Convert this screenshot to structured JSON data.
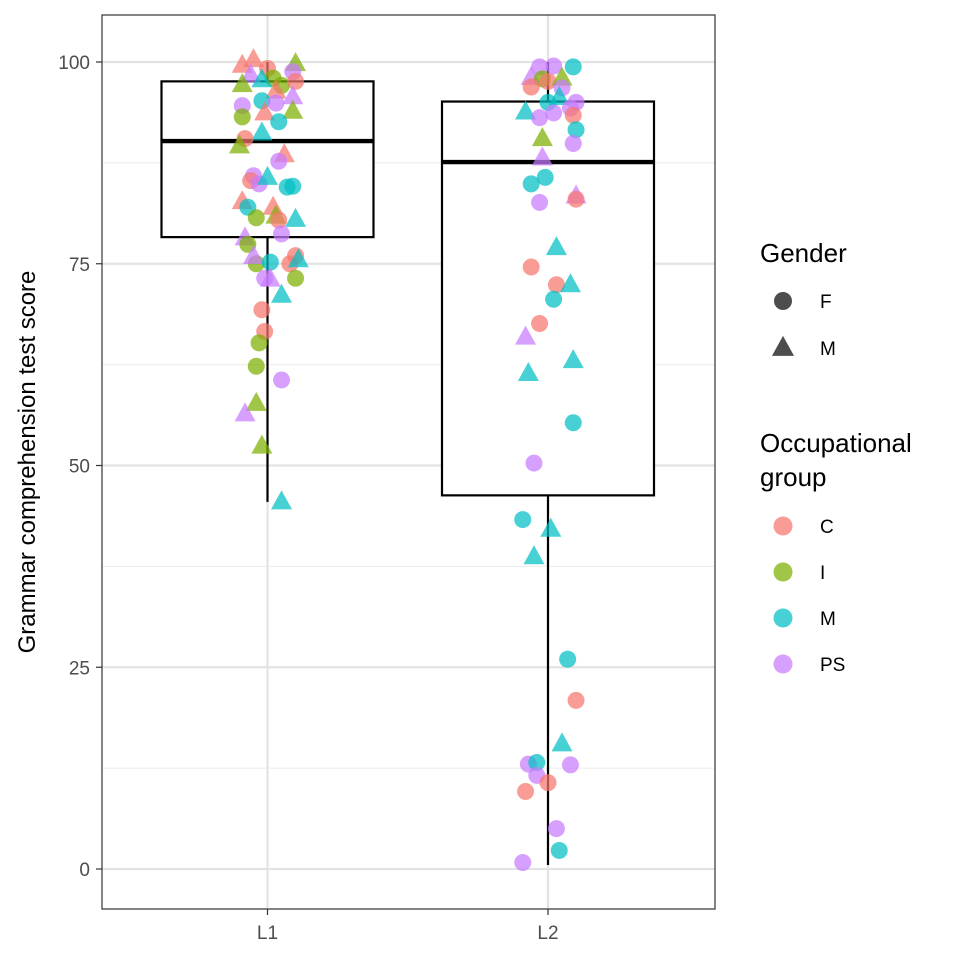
{
  "chart_data": {
    "type": "boxplot",
    "title": "",
    "xlabel": "",
    "ylabel": "Grammar comprehension test score",
    "ylim": [
      -5,
      106
    ],
    "yticks": [
      0,
      25,
      50,
      75,
      100
    ],
    "categories": [
      "L1",
      "L2"
    ],
    "grid": true,
    "legend_placement": "right",
    "boxes": [
      {
        "category": "L1",
        "whisker_low": 45.5,
        "q1": 78.3,
        "median": 90.2,
        "q3": 97.6,
        "whisker_high": 100
      },
      {
        "category": "L2",
        "whisker_low": 0.5,
        "q1": 46.3,
        "median": 87.6,
        "q3": 95.1,
        "whisker_high": 100
      }
    ],
    "legend": {
      "gender": {
        "title": "Gender",
        "items": [
          {
            "label": "F",
            "shape": "circle"
          },
          {
            "label": "M",
            "shape": "triangle"
          }
        ]
      },
      "occupational": {
        "title_lines": [
          "Occupational",
          "group"
        ],
        "items": [
          {
            "label": "C",
            "color": "#F8766D"
          },
          {
            "label": "I",
            "color": "#7CAE00"
          },
          {
            "label": "M",
            "color": "#00BFC4"
          },
          {
            "label": "PS",
            "color": "#C77CFF"
          }
        ]
      }
    },
    "points": [
      {
        "g": "L1",
        "x": -0.05,
        "y": 100.3,
        "s": "M",
        "o": "C"
      },
      {
        "g": "L1",
        "x": -0.09,
        "y": 99.6,
        "s": "M",
        "o": "C"
      },
      {
        "g": "L1",
        "x": 0.1,
        "y": 99.8,
        "s": "M",
        "o": "I"
      },
      {
        "g": "L1",
        "x": 0.09,
        "y": 98.8,
        "s": "F",
        "o": "PS"
      },
      {
        "g": "L1",
        "x": 0.0,
        "y": 99.2,
        "s": "F",
        "o": "C"
      },
      {
        "g": "L1",
        "x": -0.06,
        "y": 98.4,
        "s": "M",
        "o": "PS"
      },
      {
        "g": "L1",
        "x": 0.02,
        "y": 98.0,
        "s": "F",
        "o": "I"
      },
      {
        "g": "L1",
        "x": -0.09,
        "y": 97.2,
        "s": "M",
        "o": "I"
      },
      {
        "g": "L1",
        "x": -0.02,
        "y": 97.8,
        "s": "M",
        "o": "M"
      },
      {
        "g": "L1",
        "x": 0.05,
        "y": 97.1,
        "s": "F",
        "o": "I"
      },
      {
        "g": "L1",
        "x": 0.1,
        "y": 97.6,
        "s": "F",
        "o": "C"
      },
      {
        "g": "L1",
        "x": 0.03,
        "y": 96.4,
        "s": "M",
        "o": "C"
      },
      {
        "g": "L1",
        "x": 0.09,
        "y": 95.7,
        "s": "M",
        "o": "PS"
      },
      {
        "g": "L1",
        "x": -0.02,
        "y": 95.2,
        "s": "F",
        "o": "M"
      },
      {
        "g": "L1",
        "x": -0.09,
        "y": 94.6,
        "s": "F",
        "o": "PS"
      },
      {
        "g": "L1",
        "x": 0.03,
        "y": 94.9,
        "s": "F",
        "o": "PS"
      },
      {
        "g": "L1",
        "x": 0.09,
        "y": 93.9,
        "s": "M",
        "o": "I"
      },
      {
        "g": "L1",
        "x": -0.01,
        "y": 93.7,
        "s": "M",
        "o": "C"
      },
      {
        "g": "L1",
        "x": -0.09,
        "y": 93.2,
        "s": "F",
        "o": "I"
      },
      {
        "g": "L1",
        "x": 0.04,
        "y": 92.6,
        "s": "F",
        "o": "M"
      },
      {
        "g": "L1",
        "x": -0.02,
        "y": 91.2,
        "s": "M",
        "o": "M"
      },
      {
        "g": "L1",
        "x": -0.08,
        "y": 90.5,
        "s": "F",
        "o": "C"
      },
      {
        "g": "L1",
        "x": -0.1,
        "y": 89.6,
        "s": "M",
        "o": "I"
      },
      {
        "g": "L1",
        "x": 0.06,
        "y": 88.5,
        "s": "M",
        "o": "C"
      },
      {
        "g": "L1",
        "x": 0.04,
        "y": 87.7,
        "s": "F",
        "o": "PS"
      },
      {
        "g": "L1",
        "x": -0.05,
        "y": 85.9,
        "s": "F",
        "o": "PS"
      },
      {
        "g": "L1",
        "x": -0.06,
        "y": 85.3,
        "s": "F",
        "o": "C"
      },
      {
        "g": "L1",
        "x": -0.03,
        "y": 84.9,
        "s": "F",
        "o": "PS"
      },
      {
        "g": "L1",
        "x": 0.0,
        "y": 85.7,
        "s": "M",
        "o": "M"
      },
      {
        "g": "L1",
        "x": 0.07,
        "y": 84.5,
        "s": "F",
        "o": "M"
      },
      {
        "g": "L1",
        "x": 0.09,
        "y": 84.6,
        "s": "F",
        "o": "M"
      },
      {
        "g": "L1",
        "x": -0.09,
        "y": 82.7,
        "s": "M",
        "o": "C"
      },
      {
        "g": "L1",
        "x": -0.07,
        "y": 82.0,
        "s": "F",
        "o": "M"
      },
      {
        "g": "L1",
        "x": 0.02,
        "y": 82.0,
        "s": "M",
        "o": "C"
      },
      {
        "g": "L1",
        "x": -0.04,
        "y": 80.7,
        "s": "F",
        "o": "I"
      },
      {
        "g": "L1",
        "x": 0.03,
        "y": 80.9,
        "s": "M",
        "o": "I"
      },
      {
        "g": "L1",
        "x": 0.04,
        "y": 80.4,
        "s": "F",
        "o": "C"
      },
      {
        "g": "L1",
        "x": 0.1,
        "y": 80.5,
        "s": "M",
        "o": "M"
      },
      {
        "g": "L1",
        "x": -0.08,
        "y": 78.2,
        "s": "M",
        "o": "PS"
      },
      {
        "g": "L1",
        "x": -0.07,
        "y": 77.4,
        "s": "F",
        "o": "I"
      },
      {
        "g": "L1",
        "x": 0.05,
        "y": 78.7,
        "s": "F",
        "o": "PS"
      },
      {
        "g": "L1",
        "x": -0.04,
        "y": 75.0,
        "s": "F",
        "o": "I"
      },
      {
        "g": "L1",
        "x": -0.05,
        "y": 75.9,
        "s": "M",
        "o": "PS"
      },
      {
        "g": "L1",
        "x": 0.01,
        "y": 75.2,
        "s": "F",
        "o": "M"
      },
      {
        "g": "L1",
        "x": 0.1,
        "y": 76.0,
        "s": "F",
        "o": "C"
      },
      {
        "g": "L1",
        "x": 0.08,
        "y": 75.0,
        "s": "F",
        "o": "C"
      },
      {
        "g": "L1",
        "x": 0.11,
        "y": 75.5,
        "s": "M",
        "o": "M"
      },
      {
        "g": "L1",
        "x": -0.01,
        "y": 73.2,
        "s": "F",
        "o": "PS"
      },
      {
        "g": "L1",
        "x": 0.01,
        "y": 73.1,
        "s": "M",
        "o": "PS"
      },
      {
        "g": "L1",
        "x": 0.1,
        "y": 73.2,
        "s": "F",
        "o": "I"
      },
      {
        "g": "L1",
        "x": 0.05,
        "y": 71.1,
        "s": "M",
        "o": "M"
      },
      {
        "g": "L1",
        "x": -0.02,
        "y": 69.3,
        "s": "F",
        "o": "C"
      },
      {
        "g": "L1",
        "x": -0.01,
        "y": 66.6,
        "s": "F",
        "o": "C"
      },
      {
        "g": "L1",
        "x": -0.03,
        "y": 65.2,
        "s": "F",
        "o": "I"
      },
      {
        "g": "L1",
        "x": -0.04,
        "y": 62.3,
        "s": "F",
        "o": "I"
      },
      {
        "g": "L1",
        "x": 0.05,
        "y": 60.6,
        "s": "F",
        "o": "PS"
      },
      {
        "g": "L1",
        "x": -0.04,
        "y": 57.7,
        "s": "M",
        "o": "I"
      },
      {
        "g": "L1",
        "x": -0.08,
        "y": 56.4,
        "s": "M",
        "o": "PS"
      },
      {
        "g": "L1",
        "x": -0.02,
        "y": 52.4,
        "s": "M",
        "o": "I"
      },
      {
        "g": "L1",
        "x": 0.05,
        "y": 45.5,
        "s": "M",
        "o": "M"
      },
      {
        "g": "L2",
        "x": 0.02,
        "y": 99.5,
        "s": "F",
        "o": "PS"
      },
      {
        "g": "L2",
        "x": -0.03,
        "y": 99.4,
        "s": "F",
        "o": "PS"
      },
      {
        "g": "L2",
        "x": 0.09,
        "y": 99.4,
        "s": "F",
        "o": "M"
      },
      {
        "g": "L2",
        "x": -0.06,
        "y": 98.1,
        "s": "M",
        "o": "PS"
      },
      {
        "g": "L2",
        "x": -0.02,
        "y": 97.9,
        "s": "F",
        "o": "I"
      },
      {
        "g": "L2",
        "x": 0.0,
        "y": 97.6,
        "s": "F",
        "o": "C"
      },
      {
        "g": "L2",
        "x": 0.05,
        "y": 98.0,
        "s": "M",
        "o": "I"
      },
      {
        "g": "L2",
        "x": -0.06,
        "y": 96.9,
        "s": "F",
        "o": "C"
      },
      {
        "g": "L2",
        "x": 0.05,
        "y": 96.8,
        "s": "F",
        "o": "PS"
      },
      {
        "g": "L2",
        "x": 0.04,
        "y": 95.6,
        "s": "M",
        "o": "M"
      },
      {
        "g": "L2",
        "x": 0.0,
        "y": 95.0,
        "s": "F",
        "o": "M"
      },
      {
        "g": "L2",
        "x": 0.1,
        "y": 95.0,
        "s": "F",
        "o": "PS"
      },
      {
        "g": "L2",
        "x": -0.08,
        "y": 93.8,
        "s": "M",
        "o": "M"
      },
      {
        "g": "L2",
        "x": -0.03,
        "y": 93.1,
        "s": "F",
        "o": "PS"
      },
      {
        "g": "L2",
        "x": 0.02,
        "y": 93.7,
        "s": "F",
        "o": "PS"
      },
      {
        "g": "L2",
        "x": 0.08,
        "y": 94.3,
        "s": "F",
        "o": "PS"
      },
      {
        "g": "L2",
        "x": 0.09,
        "y": 93.4,
        "s": "F",
        "o": "C"
      },
      {
        "g": "L2",
        "x": 0.1,
        "y": 91.6,
        "s": "F",
        "o": "M"
      },
      {
        "g": "L2",
        "x": -0.02,
        "y": 90.5,
        "s": "M",
        "o": "I"
      },
      {
        "g": "L2",
        "x": 0.09,
        "y": 89.9,
        "s": "F",
        "o": "PS"
      },
      {
        "g": "L2",
        "x": -0.02,
        "y": 88.1,
        "s": "M",
        "o": "PS"
      },
      {
        "g": "L2",
        "x": -0.06,
        "y": 84.9,
        "s": "F",
        "o": "M"
      },
      {
        "g": "L2",
        "x": -0.01,
        "y": 85.7,
        "s": "F",
        "o": "M"
      },
      {
        "g": "L2",
        "x": 0.1,
        "y": 83.4,
        "s": "M",
        "o": "PS"
      },
      {
        "g": "L2",
        "x": 0.1,
        "y": 83.0,
        "s": "F",
        "o": "C"
      },
      {
        "g": "L2",
        "x": -0.03,
        "y": 82.6,
        "s": "F",
        "o": "PS"
      },
      {
        "g": "L2",
        "x": 0.03,
        "y": 77.0,
        "s": "M",
        "o": "M"
      },
      {
        "g": "L2",
        "x": -0.06,
        "y": 74.6,
        "s": "F",
        "o": "C"
      },
      {
        "g": "L2",
        "x": 0.03,
        "y": 72.4,
        "s": "F",
        "o": "C"
      },
      {
        "g": "L2",
        "x": 0.08,
        "y": 72.4,
        "s": "M",
        "o": "M"
      },
      {
        "g": "L2",
        "x": 0.02,
        "y": 70.6,
        "s": "F",
        "o": "M"
      },
      {
        "g": "L2",
        "x": -0.03,
        "y": 67.6,
        "s": "F",
        "o": "C"
      },
      {
        "g": "L2",
        "x": -0.08,
        "y": 65.9,
        "s": "M",
        "o": "PS"
      },
      {
        "g": "L2",
        "x": 0.09,
        "y": 63.0,
        "s": "M",
        "o": "M"
      },
      {
        "g": "L2",
        "x": -0.07,
        "y": 61.4,
        "s": "M",
        "o": "M"
      },
      {
        "g": "L2",
        "x": 0.09,
        "y": 55.3,
        "s": "F",
        "o": "M"
      },
      {
        "g": "L2",
        "x": -0.05,
        "y": 50.3,
        "s": "F",
        "o": "PS"
      },
      {
        "g": "L2",
        "x": -0.09,
        "y": 43.3,
        "s": "F",
        "o": "M"
      },
      {
        "g": "L2",
        "x": 0.01,
        "y": 42.1,
        "s": "M",
        "o": "M"
      },
      {
        "g": "L2",
        "x": -0.05,
        "y": 38.7,
        "s": "M",
        "o": "M"
      },
      {
        "g": "L2",
        "x": 0.07,
        "y": 26.0,
        "s": "F",
        "o": "M"
      },
      {
        "g": "L2",
        "x": 0.1,
        "y": 20.9,
        "s": "F",
        "o": "C"
      },
      {
        "g": "L2",
        "x": 0.05,
        "y": 15.5,
        "s": "M",
        "o": "M"
      },
      {
        "g": "L2",
        "x": -0.07,
        "y": 13.0,
        "s": "F",
        "o": "PS"
      },
      {
        "g": "L2",
        "x": -0.04,
        "y": 13.2,
        "s": "F",
        "o": "M"
      },
      {
        "g": "L2",
        "x": 0.08,
        "y": 12.9,
        "s": "F",
        "o": "PS"
      },
      {
        "g": "L2",
        "x": -0.04,
        "y": 11.6,
        "s": "F",
        "o": "PS"
      },
      {
        "g": "L2",
        "x": 0.0,
        "y": 10.7,
        "s": "F",
        "o": "C"
      },
      {
        "g": "L2",
        "x": -0.08,
        "y": 9.6,
        "s": "F",
        "o": "C"
      },
      {
        "g": "L2",
        "x": 0.03,
        "y": 5.0,
        "s": "F",
        "o": "PS"
      },
      {
        "g": "L2",
        "x": 0.04,
        "y": 2.3,
        "s": "F",
        "o": "M"
      },
      {
        "g": "L2",
        "x": -0.09,
        "y": 0.8,
        "s": "F",
        "o": "PS"
      }
    ]
  }
}
